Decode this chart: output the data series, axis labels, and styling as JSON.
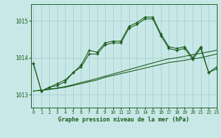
{
  "title": "Graphe pression niveau de la mer (hPa)",
  "background_color": "#c8e8e8",
  "grid_color": "#a0c8c8",
  "line_color": "#1a5c1a",
  "xlim": [
    -0.3,
    23
  ],
  "ylim": [
    1012.65,
    1015.45
  ],
  "yticks": [
    1013,
    1014,
    1015
  ],
  "xticks": [
    0,
    1,
    2,
    3,
    4,
    5,
    6,
    7,
    8,
    9,
    10,
    11,
    12,
    13,
    14,
    15,
    16,
    17,
    18,
    19,
    20,
    21,
    22,
    23
  ],
  "series_main": [
    1013.85,
    1013.1,
    1013.2,
    1013.25,
    1013.35,
    1013.6,
    1013.8,
    1014.2,
    1014.15,
    1014.4,
    1014.45,
    1014.45,
    1014.85,
    1014.95,
    1015.1,
    1015.1,
    1014.65,
    1014.3,
    1014.25,
    1014.3,
    1014.0,
    1014.3,
    1013.6,
    1013.75
  ],
  "series_secondary": [
    1013.85,
    1013.1,
    1013.2,
    1013.3,
    1013.4,
    1013.6,
    1013.75,
    1014.1,
    1014.1,
    1014.35,
    1014.4,
    1014.4,
    1014.8,
    1014.9,
    1015.05,
    1015.05,
    1014.6,
    1014.25,
    1014.2,
    1014.25,
    1013.95,
    1014.25,
    1013.6,
    1013.7
  ],
  "series_flat": [
    1013.1,
    1013.12,
    1013.14,
    1013.17,
    1013.2,
    1013.25,
    1013.3,
    1013.35,
    1013.4,
    1013.47,
    1013.52,
    1013.57,
    1013.62,
    1013.67,
    1013.72,
    1013.77,
    1013.82,
    1013.87,
    1013.9,
    1013.93,
    1013.97,
    1014.0,
    1014.05,
    1014.1
  ],
  "series_flat2": [
    1013.1,
    1013.12,
    1013.15,
    1013.18,
    1013.22,
    1013.27,
    1013.33,
    1013.38,
    1013.44,
    1013.5,
    1013.56,
    1013.62,
    1013.68,
    1013.74,
    1013.8,
    1013.86,
    1013.92,
    1013.97,
    1014.0,
    1014.04,
    1014.08,
    1014.12,
    1014.16,
    1014.2
  ]
}
